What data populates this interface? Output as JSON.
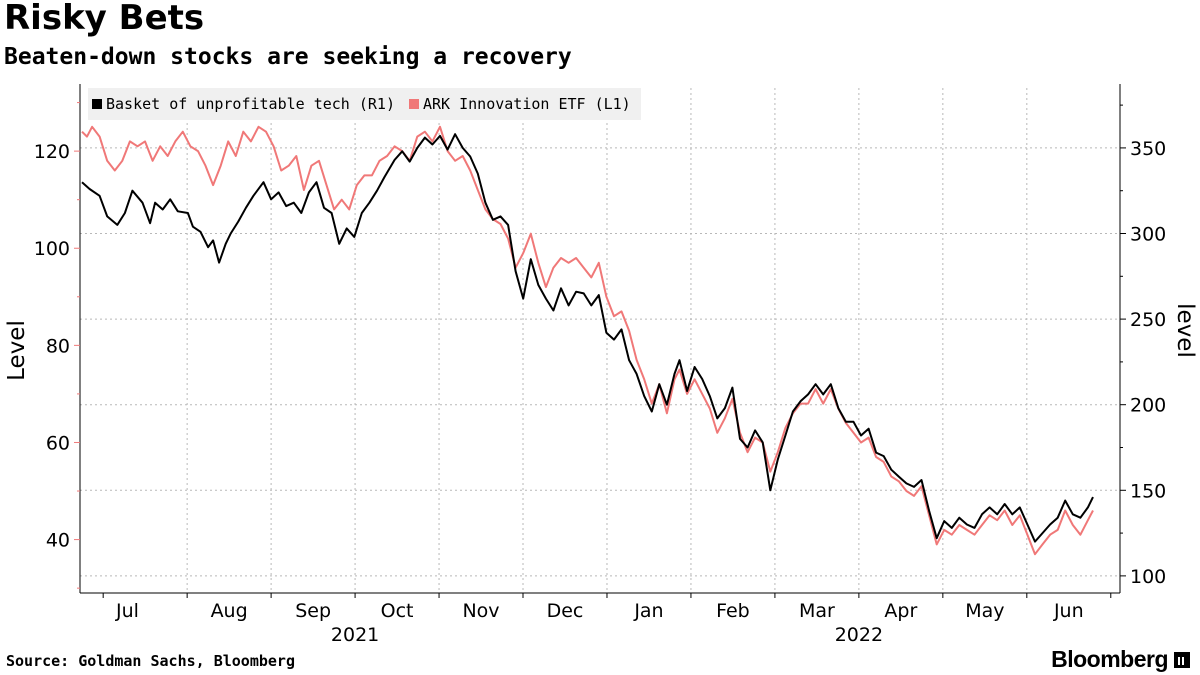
{
  "header": {
    "title": "Risky Bets",
    "subtitle": "Beaten-down stocks are seeking a recovery"
  },
  "footer": {
    "source": "Source: Goldman Sachs, Bloomberg",
    "brand": "Bloomberg"
  },
  "colors": {
    "basket": "#000000",
    "ark": "#f07878",
    "grid": "#b8b8b8"
  },
  "chart_data": {
    "type": "line",
    "title": "Risky Bets",
    "subtitle": "Beaten-down stocks are seeking a recovery",
    "left_axis": {
      "label": "Level",
      "ylim": [
        29,
        133
      ],
      "ticks": [
        40,
        60,
        80,
        100,
        120
      ]
    },
    "right_axis": {
      "label": "level",
      "ylim": [
        90,
        385
      ],
      "ticks": [
        100,
        150,
        200,
        250,
        300,
        350
      ]
    },
    "x_months": [
      "Jul",
      "Aug",
      "Sep",
      "Oct",
      "Nov",
      "Dec",
      "Jan",
      "Feb",
      "Mar",
      "Apr",
      "May",
      "Jun"
    ],
    "x_years": [
      {
        "label": "2021",
        "month_index": 3
      },
      {
        "label": "2022",
        "month_index": 9
      }
    ],
    "legend": [
      {
        "name": "Basket of unprofitable tech (R1)",
        "key": "basket"
      },
      {
        "name": "ARK Innovation ETF (L1)",
        "key": "ark"
      }
    ],
    "series": [
      {
        "name": "Basket of unprofitable tech (R1)",
        "axis": "right",
        "points": [
          [
            0,
            330
          ],
          [
            0.15,
            326
          ],
          [
            0.35,
            322
          ],
          [
            0.5,
            310
          ],
          [
            0.7,
            305
          ],
          [
            0.85,
            312
          ],
          [
            1.0,
            325
          ],
          [
            1.2,
            318
          ],
          [
            1.35,
            306
          ],
          [
            1.45,
            318
          ],
          [
            1.6,
            314
          ],
          [
            1.75,
            320
          ],
          [
            1.9,
            313
          ],
          [
            2.1,
            312
          ],
          [
            2.2,
            304
          ],
          [
            2.35,
            301
          ],
          [
            2.5,
            292
          ],
          [
            2.6,
            296
          ],
          [
            2.72,
            283
          ],
          [
            2.85,
            294
          ],
          [
            2.95,
            300
          ],
          [
            3.1,
            307
          ],
          [
            3.25,
            315
          ],
          [
            3.4,
            322
          ],
          [
            3.6,
            330
          ],
          [
            3.75,
            320
          ],
          [
            3.9,
            324
          ],
          [
            4.05,
            316
          ],
          [
            4.2,
            318
          ],
          [
            4.35,
            312
          ],
          [
            4.5,
            324
          ],
          [
            4.65,
            330
          ],
          [
            4.8,
            315
          ],
          [
            4.95,
            312
          ],
          [
            5.1,
            294
          ],
          [
            5.25,
            303
          ],
          [
            5.4,
            298
          ],
          [
            5.55,
            312
          ],
          [
            5.7,
            318
          ],
          [
            5.85,
            325
          ],
          [
            6.0,
            333
          ],
          [
            6.2,
            343
          ],
          [
            6.35,
            348
          ],
          [
            6.5,
            342
          ],
          [
            6.65,
            350
          ],
          [
            6.8,
            356
          ],
          [
            6.95,
            352
          ],
          [
            7.1,
            357
          ],
          [
            7.25,
            349
          ],
          [
            7.4,
            358
          ],
          [
            7.55,
            350
          ],
          [
            7.7,
            345
          ],
          [
            7.85,
            335
          ],
          [
            8.0,
            318
          ],
          [
            8.15,
            308
          ],
          [
            8.3,
            310
          ],
          [
            8.45,
            305
          ],
          [
            8.6,
            278
          ],
          [
            8.75,
            262
          ],
          [
            8.9,
            285
          ],
          [
            9.05,
            270
          ],
          [
            9.2,
            262
          ],
          [
            9.35,
            255
          ],
          [
            9.5,
            268
          ],
          [
            9.65,
            258
          ],
          [
            9.8,
            266
          ],
          [
            9.95,
            265
          ],
          [
            10.1,
            258
          ],
          [
            10.25,
            264
          ],
          [
            10.4,
            242
          ],
          [
            10.55,
            238
          ],
          [
            10.7,
            244
          ],
          [
            10.85,
            226
          ],
          [
            11.0,
            218
          ],
          [
            11.15,
            205
          ],
          [
            11.3,
            196
          ],
          [
            11.45,
            212
          ],
          [
            11.6,
            200
          ],
          [
            11.75,
            218
          ],
          [
            11.85,
            226
          ],
          [
            12.0,
            208
          ],
          [
            12.15,
            222
          ],
          [
            12.3,
            215
          ],
          [
            12.45,
            205
          ],
          [
            12.6,
            192
          ],
          [
            12.75,
            198
          ],
          [
            12.9,
            210
          ],
          [
            13.05,
            180
          ],
          [
            13.2,
            175
          ],
          [
            13.35,
            185
          ],
          [
            13.5,
            178
          ],
          [
            13.65,
            150
          ],
          [
            13.8,
            168
          ],
          [
            13.95,
            182
          ],
          [
            14.1,
            196
          ],
          [
            14.25,
            202
          ],
          [
            14.4,
            206
          ],
          [
            14.55,
            212
          ],
          [
            14.7,
            206
          ],
          [
            14.85,
            212
          ],
          [
            15.0,
            198
          ],
          [
            15.15,
            190
          ],
          [
            15.3,
            190
          ],
          [
            15.45,
            182
          ],
          [
            15.6,
            186
          ],
          [
            15.75,
            172
          ],
          [
            15.9,
            170
          ],
          [
            16.05,
            162
          ],
          [
            16.2,
            158
          ],
          [
            16.35,
            154
          ],
          [
            16.5,
            152
          ],
          [
            16.65,
            156
          ],
          [
            16.8,
            138
          ],
          [
            16.95,
            122
          ],
          [
            17.1,
            132
          ],
          [
            17.25,
            128
          ],
          [
            17.4,
            134
          ],
          [
            17.55,
            130
          ],
          [
            17.7,
            128
          ],
          [
            17.85,
            136
          ],
          [
            18.0,
            140
          ],
          [
            18.15,
            136
          ],
          [
            18.3,
            142
          ],
          [
            18.45,
            136
          ],
          [
            18.6,
            140
          ],
          [
            18.75,
            130
          ],
          [
            18.9,
            120
          ],
          [
            19.05,
            125
          ],
          [
            19.2,
            130
          ],
          [
            19.35,
            134
          ],
          [
            19.5,
            144
          ],
          [
            19.65,
            136
          ],
          [
            19.8,
            134
          ],
          [
            19.95,
            140
          ],
          [
            20.05,
            146
          ]
        ]
      },
      {
        "name": "ARK Innovation ETF (L1)",
        "axis": "left",
        "points": [
          [
            0,
            124
          ],
          [
            0.1,
            123
          ],
          [
            0.2,
            125
          ],
          [
            0.35,
            123
          ],
          [
            0.5,
            118
          ],
          [
            0.65,
            116
          ],
          [
            0.8,
            118
          ],
          [
            0.95,
            122
          ],
          [
            1.1,
            121
          ],
          [
            1.25,
            122
          ],
          [
            1.4,
            118
          ],
          [
            1.55,
            121
          ],
          [
            1.7,
            119
          ],
          [
            1.85,
            122
          ],
          [
            2.0,
            124
          ],
          [
            2.15,
            121
          ],
          [
            2.3,
            120
          ],
          [
            2.45,
            117
          ],
          [
            2.6,
            113
          ],
          [
            2.75,
            117
          ],
          [
            2.9,
            122
          ],
          [
            3.05,
            119
          ],
          [
            3.2,
            124
          ],
          [
            3.35,
            122
          ],
          [
            3.5,
            125
          ],
          [
            3.65,
            124
          ],
          [
            3.8,
            121
          ],
          [
            3.95,
            116
          ],
          [
            4.1,
            117
          ],
          [
            4.25,
            119
          ],
          [
            4.4,
            112
          ],
          [
            4.55,
            117
          ],
          [
            4.7,
            118
          ],
          [
            4.85,
            113
          ],
          [
            5.0,
            108
          ],
          [
            5.15,
            110
          ],
          [
            5.3,
            108
          ],
          [
            5.45,
            113
          ],
          [
            5.6,
            115
          ],
          [
            5.75,
            115
          ],
          [
            5.9,
            118
          ],
          [
            6.05,
            119
          ],
          [
            6.2,
            121
          ],
          [
            6.35,
            120
          ],
          [
            6.5,
            118
          ],
          [
            6.65,
            123
          ],
          [
            6.8,
            124
          ],
          [
            6.95,
            122
          ],
          [
            7.1,
            125
          ],
          [
            7.25,
            120
          ],
          [
            7.4,
            118
          ],
          [
            7.55,
            119
          ],
          [
            7.7,
            116
          ],
          [
            7.85,
            112
          ],
          [
            8.0,
            108
          ],
          [
            8.15,
            106
          ],
          [
            8.3,
            105
          ],
          [
            8.45,
            102
          ],
          [
            8.6,
            96
          ],
          [
            8.75,
            99
          ],
          [
            8.9,
            103
          ],
          [
            9.05,
            97
          ],
          [
            9.2,
            92
          ],
          [
            9.35,
            96
          ],
          [
            9.5,
            98
          ],
          [
            9.65,
            97
          ],
          [
            9.8,
            98
          ],
          [
            9.95,
            96
          ],
          [
            10.1,
            94
          ],
          [
            10.25,
            97
          ],
          [
            10.4,
            90
          ],
          [
            10.55,
            86
          ],
          [
            10.7,
            87
          ],
          [
            10.85,
            83
          ],
          [
            11.0,
            77
          ],
          [
            11.15,
            73
          ],
          [
            11.3,
            68
          ],
          [
            11.45,
            72
          ],
          [
            11.6,
            66
          ],
          [
            11.75,
            73
          ],
          [
            11.85,
            75
          ],
          [
            12.0,
            70
          ],
          [
            12.15,
            73
          ],
          [
            12.3,
            70
          ],
          [
            12.45,
            67
          ],
          [
            12.6,
            62
          ],
          [
            12.75,
            65
          ],
          [
            12.9,
            69
          ],
          [
            13.05,
            62
          ],
          [
            13.2,
            58
          ],
          [
            13.35,
            61
          ],
          [
            13.5,
            60
          ],
          [
            13.65,
            54
          ],
          [
            13.8,
            58
          ],
          [
            13.95,
            63
          ],
          [
            14.1,
            66
          ],
          [
            14.25,
            68
          ],
          [
            14.4,
            68
          ],
          [
            14.55,
            71
          ],
          [
            14.7,
            68
          ],
          [
            14.85,
            71
          ],
          [
            15.0,
            67
          ],
          [
            15.15,
            64
          ],
          [
            15.3,
            62
          ],
          [
            15.45,
            60
          ],
          [
            15.6,
            61
          ],
          [
            15.75,
            57
          ],
          [
            15.9,
            56
          ],
          [
            16.05,
            53
          ],
          [
            16.2,
            52
          ],
          [
            16.35,
            50
          ],
          [
            16.5,
            49
          ],
          [
            16.65,
            51
          ],
          [
            16.8,
            45
          ],
          [
            16.95,
            39
          ],
          [
            17.1,
            42
          ],
          [
            17.25,
            41
          ],
          [
            17.4,
            43
          ],
          [
            17.55,
            42
          ],
          [
            17.7,
            41
          ],
          [
            17.85,
            43
          ],
          [
            18.0,
            45
          ],
          [
            18.15,
            44
          ],
          [
            18.3,
            46
          ],
          [
            18.45,
            43
          ],
          [
            18.6,
            45
          ],
          [
            18.75,
            41
          ],
          [
            18.9,
            37
          ],
          [
            19.05,
            39
          ],
          [
            19.2,
            41
          ],
          [
            19.35,
            42
          ],
          [
            19.5,
            46
          ],
          [
            19.65,
            43
          ],
          [
            19.8,
            41
          ],
          [
            19.95,
            44
          ],
          [
            20.05,
            46
          ]
        ]
      }
    ]
  }
}
